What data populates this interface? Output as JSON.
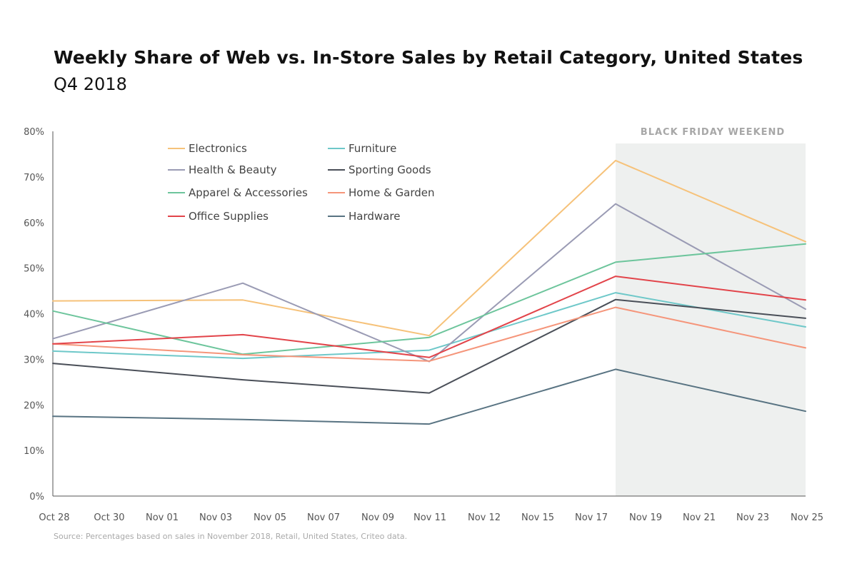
{
  "header": {
    "title": "Weekly Share of Web vs. In-Store Sales by Retail Category, United States",
    "subtitle": "Q4 2018"
  },
  "footer": {
    "source": "Source: Percentages based on sales in November 2018, Retail, United States, Criteo data."
  },
  "colors": {
    "shade": "#eef0ef",
    "axis": "#555555"
  },
  "chart_data": {
    "type": "line",
    "x": [
      "Oct 28",
      "Nov 04",
      "Nov 11",
      "Nov 18",
      "Nov 25"
    ],
    "x_ticks": [
      "Oct 28",
      "Oct 30",
      "Nov 01",
      "Nov 03",
      "Nov 05",
      "Nov 07",
      "Nov 09",
      "Nov 11",
      "Nov 12",
      "Nov 15",
      "Nov 17",
      "Nov 19",
      "Nov 21",
      "Nov 23",
      "Nov 25"
    ],
    "y_ticks": [
      "0%",
      "10%",
      "20%",
      "30%",
      "40%",
      "50%",
      "60%",
      "70%",
      "80%"
    ],
    "ylim": [
      0,
      80
    ],
    "highlight": {
      "label": "BLACK FRIDAY WEEKEND",
      "from": "Nov 18",
      "to": "Nov 25"
    },
    "legend_position": "top-left",
    "series": [
      {
        "name": "Electronics",
        "color": "#f6c27a",
        "values": [
          42.8,
          43.0,
          35.2,
          73.6,
          55.8
        ]
      },
      {
        "name": "Furniture",
        "color": "#6ec8c9",
        "values": [
          31.8,
          30.2,
          32.0,
          44.6,
          37.1
        ]
      },
      {
        "name": "Health & Beauty",
        "color": "#9a9bb4",
        "values": [
          34.5,
          46.7,
          29.5,
          64.1,
          41.0
        ]
      },
      {
        "name": "Sporting Goods",
        "color": "#4a4f58",
        "values": [
          29.1,
          25.5,
          22.6,
          43.1,
          39.0
        ]
      },
      {
        "name": "Apparel & Accessories",
        "color": "#6dc59c",
        "values": [
          40.6,
          31.1,
          34.8,
          51.3,
          55.3
        ]
      },
      {
        "name": "Home & Garden",
        "color": "#f5957a",
        "values": [
          33.4,
          31.0,
          29.6,
          41.4,
          32.5
        ]
      },
      {
        "name": "Office Supplies",
        "color": "#e2444a",
        "values": [
          33.4,
          35.4,
          30.4,
          48.2,
          43.0
        ]
      },
      {
        "name": "Hardware",
        "color": "#587382",
        "values": [
          17.5,
          16.8,
          15.8,
          27.8,
          18.6
        ]
      }
    ]
  }
}
